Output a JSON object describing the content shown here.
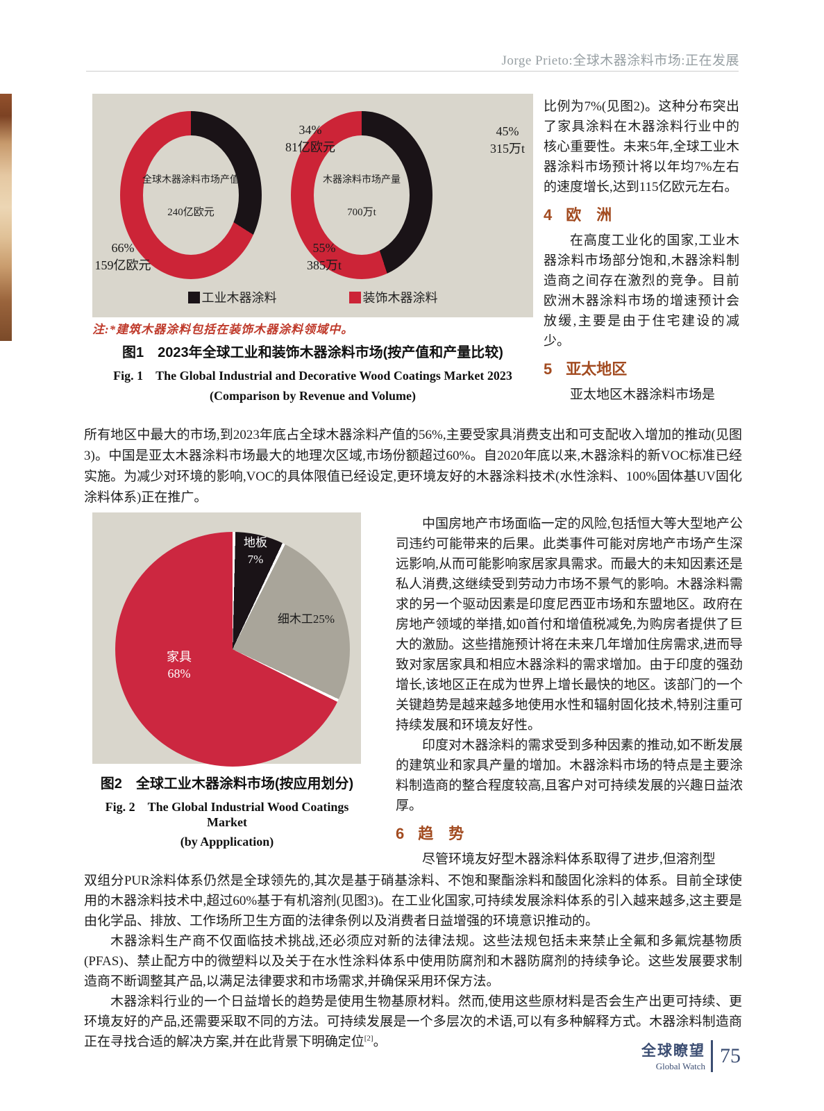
{
  "accent_colors": {
    "heading": "#a24b20",
    "note": "#bf3a2b",
    "footer": "#3b4d72",
    "chart_bg": "#d9d6cc"
  },
  "header": {
    "running_title": "Jorge Prieto:全球木器涂料市场:正在发展"
  },
  "chart_data": [
    {
      "type": "pie",
      "variant": "donut-pair",
      "title_cn": "图1　2023年全球工业和装饰木器涂料市场(按产值和产量比较)",
      "title_en": "Fig. 1　The Global Industrial and Decorative Wood Coatings Market 2023",
      "title_en2": "(Comparison by Revenue and Volume)",
      "note": "注:*建筑木器涂料包括在装饰木器涂料领域中。",
      "legend_position": "bottom",
      "legend": [
        {
          "label": "工业木器涂料",
          "color": "#1a1317"
        },
        {
          "label": "装饰木器涂料",
          "color": "#cc2437"
        }
      ],
      "donuts": [
        {
          "center_line1": "全球木器涂料市场产值",
          "center_line2": "240亿欧元",
          "slices": [
            {
              "name": "工业木器涂料",
              "value": 34,
              "pct_label": "34%",
              "value_label": "81亿欧元",
              "color": "#1a1317"
            },
            {
              "name": "装饰木器涂料",
              "value": 66,
              "pct_label": "66%",
              "value_label": "159亿欧元",
              "color": "#cc2437"
            }
          ]
        },
        {
          "center_line1": "木器涂料市场产量",
          "center_line2": "700万t",
          "slices": [
            {
              "name": "工业木器涂料",
              "value": 45,
              "pct_label": "45%",
              "value_label": "315万t",
              "color": "#1a1317"
            },
            {
              "name": "装饰木器涂料",
              "value": 55,
              "pct_label": "55%",
              "value_label": "385万t",
              "color": "#cc2437"
            }
          ]
        }
      ]
    },
    {
      "type": "pie",
      "title_cn": "图2　全球工业木器涂料市场(按应用划分)",
      "title_en": "Fig. 2　The Global Industrial Wood Coatings Market",
      "title_en2": "(by Appplication)",
      "separator_color": "#ffffff",
      "slices": [
        {
          "name": "地板",
          "value": 7,
          "color": "#1a1317",
          "label_line1": "地板",
          "label_line2": "7%"
        },
        {
          "name": "细木工",
          "value": 25,
          "color": "#a9a59a",
          "label_line1": "细木工25%",
          "label_line2": ""
        },
        {
          "name": "家具",
          "value": 68,
          "color": "#cc2740",
          "label_line1": "家具",
          "label_line2": "68%"
        }
      ]
    }
  ],
  "col_top_right": {
    "p1": "比例为7%(见图2)。这种分布突出了家具涂料在木器涂料行业中的核心重要性。未来5年,全球工业木器涂料市场预计将以年均7%左右的速度增长,达到115亿欧元左右。",
    "h4_num": "4",
    "h4_title": "欧　洲",
    "p2": "在高度工业化的国家,工业木器涂料市场部分饱和,木器涂料制造商之间存在激烈的竞争。目前欧洲木器涂料市场的增速预计会放缓,主要是由于住宅建设的减少。",
    "h5_num": "5",
    "h5_title": "亚太地区",
    "p3_start": "亚太地区木器涂料市场是"
  },
  "wide1": "所有地区中最大的市场,到2023年底占全球木器涂料产值的56%,主要受家具消费支出和可支配收入增加的推动(见图3)。中国是亚太木器涂料市场最大的地理次区域,市场份额超过60%。自2020年底以来,木器涂料的新VOC标准已经实施。为减少对环境的影响,VOC的具体限值已经设定,更环境友好的木器涂料技术(水性涂料、100%固体基UV固化涂料体系)正在推广。",
  "col_mid_right": {
    "p1": "中国房地产市场面临一定的风险,包括恒大等大型地产公司违约可能带来的后果。此类事件可能对房地产市场产生深远影响,从而可能影响家居家具需求。而最大的未知因素还是私人消费,这继续受到劳动力市场不景气的影响。木器涂料需求的另一个驱动因素是印度尼西亚市场和东盟地区。政府在房地产领域的举措,如0首付和增值税减免,为购房者提供了巨大的激励。这些措施预计将在未来几年增加住房需求,进而导致对家居家具和相应木器涂料的需求增加。由于印度的强劲增长,该地区正在成为世界上增长最快的地区。该部门的一个关键趋势是越来越多地使用水性和辐射固化技术,特别注重可持续发展和环境友好性。",
    "p2": "印度对木器涂料的需求受到多种因素的推动,如不断发展的建筑业和家具产量的增加。木器涂料市场的特点是主要涂料制造商的整合程度较高,且客户对可持续发展的兴趣日益浓厚。",
    "h6_num": "6",
    "h6_title": "趋　势",
    "p3_start": "尽管环境友好型木器涂料体系取得了进步,但溶剂型"
  },
  "bottom": {
    "p1": "双组分PUR涂料体系仍然是全球领先的,其次是基于硝基涂料、不饱和聚酯涂料和酸固化涂料的体系。目前全球使用的木器涂料技术中,超过60%基于有机溶剂(见图3)。在工业化国家,可持续发展涂料体系的引入越来越多,这主要是由化学品、排放、工作场所卫生方面的法律条例以及消费者日益增强的环境意识推动的。",
    "p2": "木器涂料生产商不仅面临技术挑战,还必须应对新的法律法规。这些法规包括未来禁止全氟和多氟烷基物质(PFAS)、禁止配方中的微塑料以及关于在水性涂料体系中使用防腐剂和木器防腐剂的持续争论。这些发展要求制造商不断调整其产品,以满足法律要求和市场需求,并确保采用环保方法。",
    "p3_before_ref": "木器涂料行业的一个日益增长的趋势是使用生物基原材料。然而,使用这些原材料是否会生产出更可持续、更环境友好的产品,还需要采取不同的方法。可持续发展是一个多层次的术语,可以有多种解释方式。木器涂料制造商正在寻找合适的解决方案,并在此背景下明确定位",
    "p3_ref": "[2]",
    "p3_after_ref": "。"
  },
  "footer": {
    "brand_cn": "全球瞭望",
    "brand_en": "Global Watch",
    "page_number": "75"
  }
}
